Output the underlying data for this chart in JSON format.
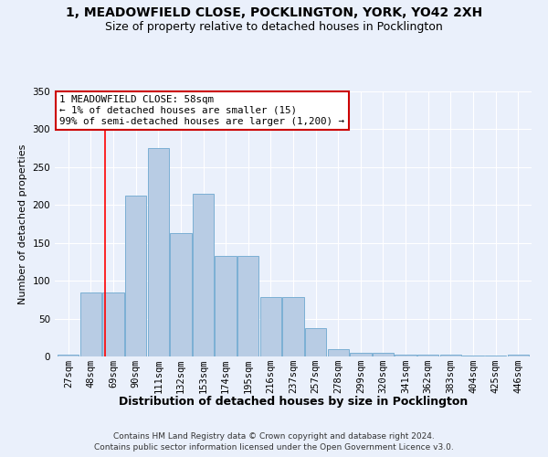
{
  "title": "1, MEADOWFIELD CLOSE, POCKLINGTON, YORK, YO42 2XH",
  "subtitle": "Size of property relative to detached houses in Pocklington",
  "xlabel": "Distribution of detached houses by size in Pocklington",
  "ylabel": "Number of detached properties",
  "footer1": "Contains HM Land Registry data © Crown copyright and database right 2024.",
  "footer2": "Contains public sector information licensed under the Open Government Licence v3.0.",
  "bin_labels": [
    "27sqm",
    "48sqm",
    "69sqm",
    "90sqm",
    "111sqm",
    "132sqm",
    "153sqm",
    "174sqm",
    "195sqm",
    "216sqm",
    "237sqm",
    "257sqm",
    "278sqm",
    "299sqm",
    "320sqm",
    "341sqm",
    "362sqm",
    "383sqm",
    "404sqm",
    "425sqm",
    "446sqm"
  ],
  "bar_values": [
    2,
    85,
    85,
    212,
    275,
    163,
    215,
    133,
    133,
    78,
    78,
    38,
    10,
    5,
    5,
    2,
    2,
    2,
    1,
    1,
    2
  ],
  "bar_color": "#b8cce4",
  "bar_edgecolor": "#7bafd4",
  "bg_color": "#eaf0fb",
  "grid_color": "#ffffff",
  "red_line_x": 1.62,
  "annotation_text": "1 MEADOWFIELD CLOSE: 58sqm\n← 1% of detached houses are smaller (15)\n99% of semi-detached houses are larger (1,200) →",
  "annotation_box_color": "#ffffff",
  "annotation_box_edgecolor": "#cc0000",
  "ylim": [
    0,
    350
  ],
  "yticks": [
    0,
    50,
    100,
    150,
    200,
    250,
    300,
    350
  ],
  "title_fontsize": 10,
  "subtitle_fontsize": 9,
  "ylabel_fontsize": 8,
  "xlabel_fontsize": 9,
  "footer_fontsize": 6.5,
  "tick_fontsize": 7.5
}
